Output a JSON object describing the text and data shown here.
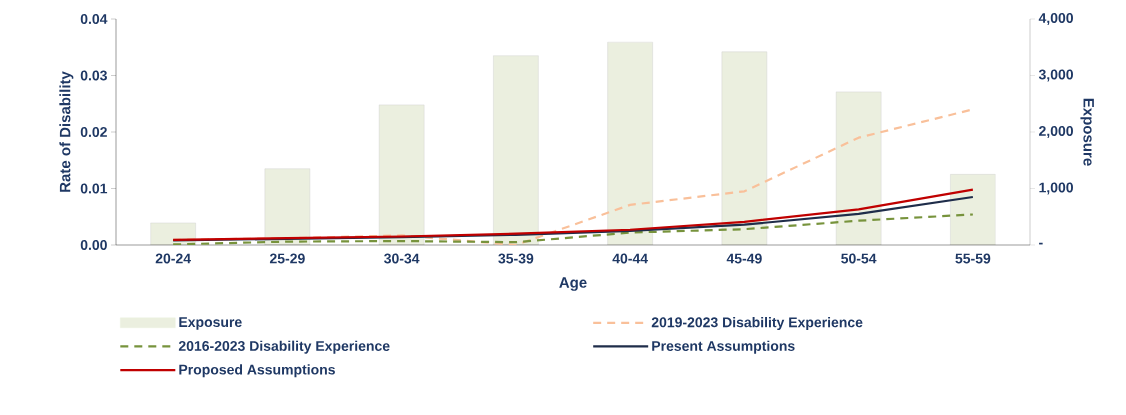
{
  "chart_data": {
    "type": "line",
    "xlabel": "Age",
    "ylabel": "Rate of Disability",
    "y2label": "Exposure",
    "categories": [
      "20-24",
      "25-29",
      "30-34",
      "35-39",
      "40-44",
      "45-49",
      "50-54",
      "55-59"
    ],
    "series": [
      {
        "name": "Exposure",
        "type": "bar",
        "axis": "y2",
        "color": "#ebefdf",
        "values": [
          390,
          1350,
          2480,
          3350,
          3590,
          3420,
          2710,
          1250
        ]
      },
      {
        "name": "2019-2023 Disability Experience",
        "color": "#f9c09a",
        "line_style": "dashed",
        "values": [
          0.0009,
          0.0012,
          0.0017,
          0.0,
          0.0071,
          0.0095,
          0.019,
          0.024
        ]
      },
      {
        "name": "2016-2023 Disability Experience",
        "color": "#77933c",
        "line_style": "dashed",
        "values": [
          0.0001,
          0.0006,
          0.0007,
          0.0005,
          0.0022,
          0.0028,
          0.0043,
          0.0054
        ]
      },
      {
        "name": "Present Assumptions",
        "color": "#1f2d4a",
        "line_style": "solid",
        "values": [
          0.0008,
          0.0011,
          0.0014,
          0.0018,
          0.0025,
          0.0036,
          0.0055,
          0.0085
        ]
      },
      {
        "name": "Proposed Assumptions",
        "color": "#c00000",
        "line_style": "solid",
        "values": [
          0.0009,
          0.0012,
          0.0015,
          0.002,
          0.0027,
          0.0041,
          0.0063,
          0.0098
        ]
      }
    ],
    "ylim": [
      0,
      0.04
    ],
    "yticks": [
      {
        "value": 0,
        "label": "0.00"
      },
      0.01,
      0.02,
      0.03,
      0.04
    ],
    "y2lim": [
      0,
      4000
    ],
    "y2ticks": [
      {
        "value": 0,
        "label": "-"
      },
      {
        "value": 1000,
        "label": "1,000"
      },
      {
        "value": 2000,
        "label": "2,000"
      },
      {
        "value": 3000,
        "label": "3,000"
      },
      {
        "value": 4000,
        "label": "4,000"
      }
    ],
    "legend": "bottom"
  }
}
